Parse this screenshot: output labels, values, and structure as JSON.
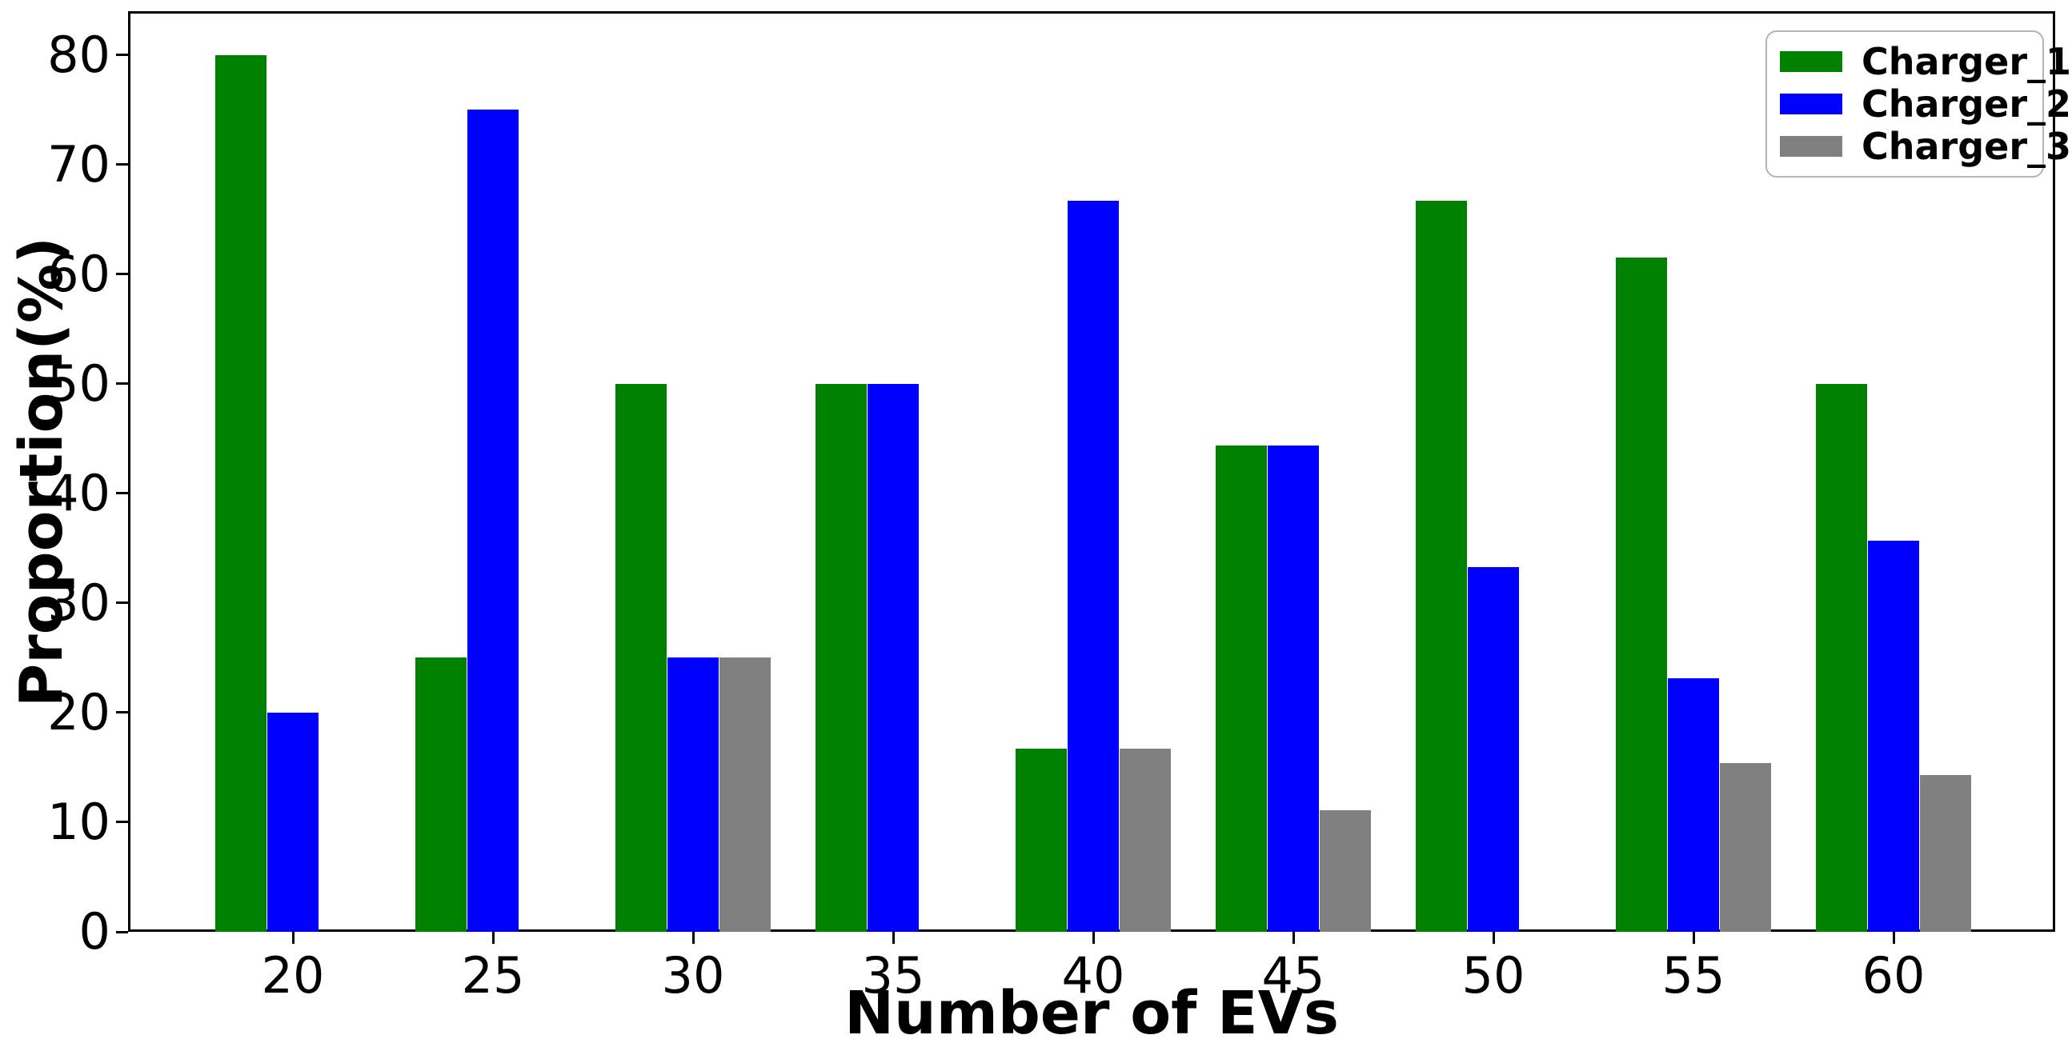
{
  "chart_data": {
    "type": "bar",
    "title": "",
    "xlabel": "Number of EVs",
    "ylabel": "Proportion(%)",
    "categories": [
      "20",
      "25",
      "30",
      "35",
      "40",
      "45",
      "50",
      "55",
      "60"
    ],
    "series": [
      {
        "name": "Charger_1",
        "color": "#008000",
        "values": [
          80,
          25,
          50,
          50,
          16.7,
          44.4,
          66.7,
          61.5,
          50
        ]
      },
      {
        "name": "Charger_2",
        "color": "#0000ff",
        "values": [
          20,
          75,
          25,
          50,
          66.7,
          44.4,
          33.3,
          23.1,
          35.7
        ]
      },
      {
        "name": "Charger_3",
        "color": "#808080",
        "values": [
          0,
          0,
          25,
          0,
          16.7,
          11.1,
          0,
          15.4,
          14.3
        ]
      }
    ],
    "ylim": [
      0,
      84
    ],
    "yticks": [
      0,
      10,
      20,
      30,
      40,
      50,
      60,
      70,
      80
    ],
    "grid": false,
    "legend_position": "upper right",
    "spine_color": "#000000",
    "background_color": "#ffffff"
  }
}
